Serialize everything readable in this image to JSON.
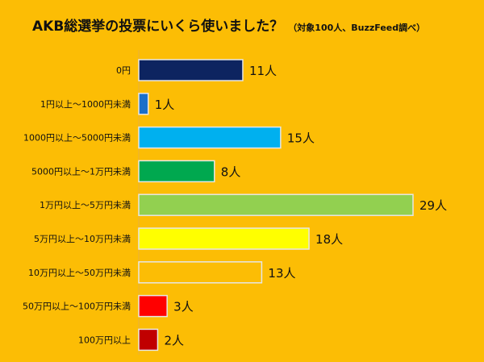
{
  "chart_data": {
    "type": "bar",
    "orientation": "horizontal",
    "title": "AKB総選挙の投票にいくら使いました？",
    "subtitle": "（対象100人、BuzzFeed調べ）",
    "categories": [
      "0円",
      "1円以上〜1000円未満",
      "1000円以上〜5000円未満",
      "5000円以上〜1万円未満",
      "1万円以上〜5万円未満",
      "5万円以上〜10万円未満",
      "10万円以上〜50万円未満",
      "50万円以上〜100万円未満",
      "100万円以上"
    ],
    "values": [
      11,
      1,
      15,
      8,
      29,
      18,
      13,
      3,
      2
    ],
    "data_labels": [
      "11人",
      "1人",
      "15人",
      "8人",
      "29人",
      "18人",
      "13人",
      "3人",
      "2人"
    ],
    "colors": [
      "#0d2460",
      "#1a6fc9",
      "#00b0ef",
      "#00a84f",
      "#92d050",
      "#ffff00",
      "#fcbd05",
      "#ff0000",
      "#c00000"
    ],
    "xlim": [
      0,
      30
    ],
    "grid": false,
    "background": "#fcbd05"
  }
}
